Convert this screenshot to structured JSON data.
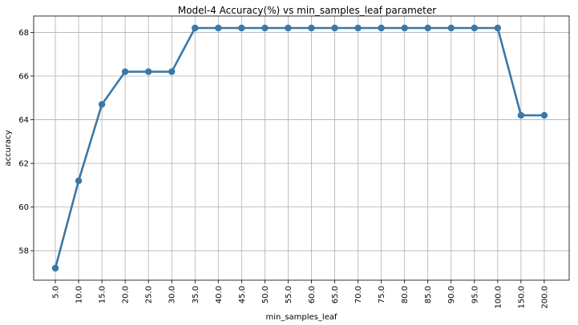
{
  "chart_data": {
    "type": "line",
    "title": "Model-4 Accuracy(%) vs min_samples_leaf parameter",
    "xlabel": "min_samples_leaf",
    "ylabel": "accuracy",
    "categories": [
      "5.0",
      "10.0",
      "15.0",
      "20.0",
      "25.0",
      "30.0",
      "35.0",
      "40.0",
      "45.0",
      "50.0",
      "55.0",
      "60.0",
      "65.0",
      "70.0",
      "75.0",
      "80.0",
      "85.0",
      "90.0",
      "95.0",
      "100.0",
      "150.0",
      "200.0"
    ],
    "values": [
      57.2,
      61.2,
      64.7,
      66.2,
      66.2,
      66.2,
      68.2,
      68.2,
      68.2,
      68.2,
      68.2,
      68.2,
      68.2,
      68.2,
      68.2,
      68.2,
      68.2,
      68.2,
      68.2,
      68.2,
      64.2,
      64.2
    ],
    "yticks": [
      58,
      60,
      62,
      64,
      66,
      68
    ],
    "ylim": [
      56.65,
      68.75
    ],
    "grid": true,
    "colors": {
      "line": "#3a78a8",
      "grid": "#b0b0b0",
      "axis": "#000000"
    }
  }
}
